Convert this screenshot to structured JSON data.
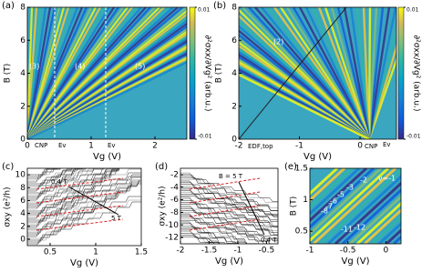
{
  "chart_data": [
    {
      "type": "heatmap",
      "panel_label": "(a)",
      "x_label": "Vg (V)",
      "y_label": "B (T)",
      "xlim": [
        0,
        2.5
      ],
      "xticks": [
        0,
        1,
        2
      ],
      "ylim": [
        0,
        8
      ],
      "yticks": [
        0,
        2,
        4,
        6,
        8
      ],
      "colorbar": {
        "label": "∂²σxx/∂Vg² (arb.u.)",
        "lim": [
          -0.01,
          0.01
        ],
        "ticks": [
          -0.01,
          0.01
        ]
      },
      "annotations": [
        "(3)",
        "(4)",
        "(5)",
        "CNP",
        "Ev",
        "Ev"
      ]
    },
    {
      "type": "heatmap",
      "panel_label": "(b)",
      "x_label": "Vg (V)",
      "y_label": "B (T)",
      "xlim": [
        -2,
        0.6
      ],
      "xticks": [
        -2,
        -1,
        0
      ],
      "ylim": [
        0,
        8
      ],
      "yticks": [
        0,
        2,
        4,
        6,
        8
      ],
      "colorbar": {
        "label": "∂²σxx/∂Vg² (arb.u.)",
        "lim": [
          -0.01,
          0.01
        ],
        "ticks": [
          -0.01,
          0.01
        ]
      },
      "annotations": [
        "(2)",
        "EDF,top",
        "CNP",
        "Ev"
      ]
    },
    {
      "type": "line",
      "panel_label": "(c)",
      "x_label": "Vg (V)",
      "y_label": "σxy (e²/h)",
      "xlim": [
        0.25,
        1.5
      ],
      "xticks": [
        0.5,
        1,
        1.5
      ],
      "ylim": [
        -1,
        11
      ],
      "yticks": [
        0,
        2,
        4,
        6,
        8,
        10
      ],
      "annotations": [
        "0.4 T",
        "5 T"
      ]
    },
    {
      "type": "line",
      "panel_label": "(d)",
      "x_label": "Vg (V)",
      "y_label": "σxy (e²/h)",
      "xlim": [
        -2,
        -0.3
      ],
      "xticks": [
        -2,
        -1.5,
        -1,
        -0.5
      ],
      "ylim": [
        -13,
        -1
      ],
      "yticks": [
        -12,
        -10,
        -8,
        -6,
        -4,
        -2
      ],
      "annotations": [
        "B = 5 T",
        "0.4 T"
      ]
    },
    {
      "type": "heatmap",
      "panel_label": "(e)",
      "x_label": "Vg (V)",
      "y_label": "B (T)",
      "xlim": [
        -1,
        0.2
      ],
      "xticks": [
        -1,
        -0.5,
        0
      ],
      "ylim": [
        0.3,
        1.5
      ],
      "yticks": [
        0.5,
        1,
        1.5
      ],
      "annotations": [
        "ν=-1",
        "-2",
        "-3",
        "-5",
        "-6",
        "-7",
        "-8",
        "-11",
        "-12"
      ]
    }
  ]
}
